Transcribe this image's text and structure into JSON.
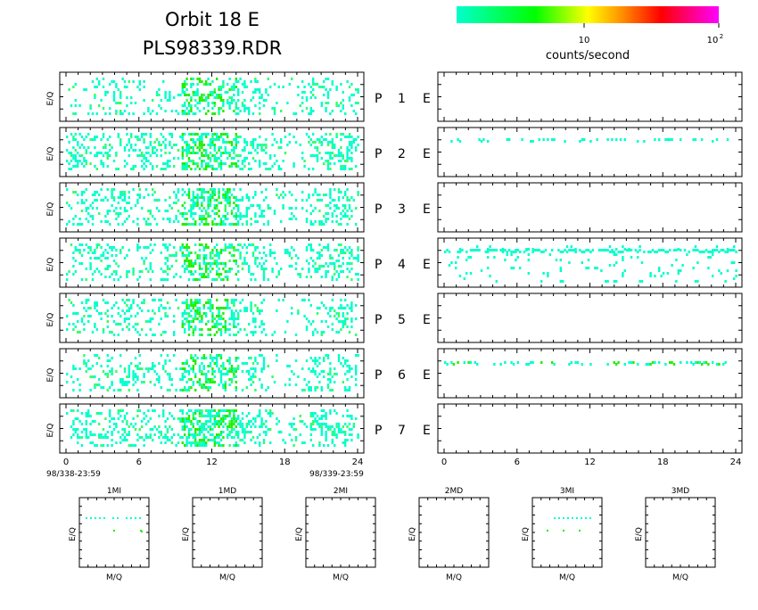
{
  "header": {
    "title_line1": "Orbit 18 E",
    "title_line2": "PLS98339.RDR"
  },
  "colorbar": {
    "label": "counts/second",
    "tick_10": "10",
    "tick_100_base": "10",
    "tick_100_exp": "2",
    "stops": [
      "#00ffcc",
      "#00ff00",
      "#ffff00",
      "#ff9900",
      "#ff0000",
      "#ff00ff"
    ]
  },
  "chart_data": {
    "type": "heatmap",
    "title": "Orbit 18 E — PLS98339.RDR",
    "color_scale": {
      "label": "counts/second",
      "log": true,
      "range": [
        1,
        100
      ]
    },
    "left_panels": {
      "ylabel": "E/Q",
      "xlabel_start": "98/338-23:59",
      "xlabel_end": "98/339-23:59",
      "x_ticks": [
        "0",
        "6",
        "12",
        "18",
        "24"
      ],
      "xlim": [
        0,
        24
      ]
    },
    "right_panels": {
      "x_ticks": [
        "0",
        "6",
        "12",
        "18",
        "24"
      ],
      "xlim": [
        0,
        24
      ]
    },
    "rows": [
      {
        "label": "P",
        "num": "1",
        "suffix": "E",
        "left_density": 0.45,
        "right_density": 0.0
      },
      {
        "label": "P",
        "num": "2",
        "suffix": "E",
        "left_density": 0.65,
        "right_density": 0.08
      },
      {
        "label": "P",
        "num": "3",
        "suffix": "E",
        "left_density": 0.55,
        "right_density": 0.0
      },
      {
        "label": "P",
        "num": "4",
        "suffix": "E",
        "left_density": 0.55,
        "right_density": 0.18
      },
      {
        "label": "P",
        "num": "5",
        "suffix": "E",
        "left_density": 0.45,
        "right_density": 0.0
      },
      {
        "label": "P",
        "num": "6",
        "suffix": "E",
        "left_density": 0.5,
        "right_density": 0.12
      },
      {
        "label": "P",
        "num": "7",
        "suffix": "E",
        "left_density": 0.65,
        "right_density": 0.0
      }
    ],
    "mass_panels": [
      {
        "title": "1MI",
        "xlabel": "M/Q",
        "ylabel": "E/Q",
        "has_data": true
      },
      {
        "title": "1MD",
        "xlabel": "M/Q",
        "ylabel": "E/Q",
        "has_data": false
      },
      {
        "title": "2MI",
        "xlabel": "M/Q",
        "ylabel": "E/Q",
        "has_data": false
      },
      {
        "title": "2MD",
        "xlabel": "M/Q",
        "ylabel": "E/Q",
        "has_data": false
      },
      {
        "title": "3MI",
        "xlabel": "M/Q",
        "ylabel": "E/Q",
        "has_data": true
      },
      {
        "title": "3MD",
        "xlabel": "M/Q",
        "ylabel": "E/Q",
        "has_data": false
      }
    ]
  }
}
